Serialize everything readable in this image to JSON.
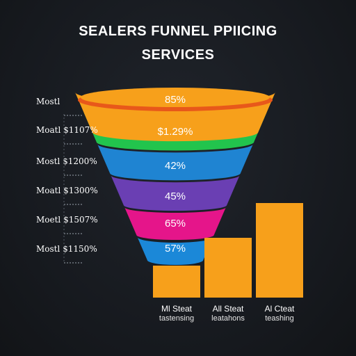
{
  "title_line1": "SEALERS FUNNEL  PPIICING",
  "title_line2": "SERVICES",
  "chart_data": [
    {
      "type": "funnel",
      "stages": [
        {
          "label": "85%",
          "color": "#f7a01b"
        },
        {
          "label": "$1.29%",
          "color": "#22c44d"
        },
        {
          "label": "42%",
          "color": "#1f84d2"
        },
        {
          "label": "45%",
          "color": "#6a3fb3"
        },
        {
          "label": "65%",
          "color": "#e5158a"
        },
        {
          "label": "57%",
          "color": "#1b88d8"
        }
      ],
      "rim_color": "#e8581a",
      "side_labels": [
        "Mostl",
        "Moatl $1107%",
        "Mostl $1200%",
        "Moatl $1300%",
        "Moetl $1507%",
        "Mostl $1150%"
      ]
    },
    {
      "type": "bar",
      "bar_color": "#f7a01b",
      "categories": [
        {
          "name": "Ml Steat",
          "sub": "tastensing"
        },
        {
          "name": "All Steat",
          "sub": "leatahons"
        },
        {
          "name": "Al Cteat",
          "sub": "teashing"
        }
      ],
      "values": [
        46,
        86,
        136
      ],
      "ylim": [
        0,
        140
      ]
    }
  ]
}
